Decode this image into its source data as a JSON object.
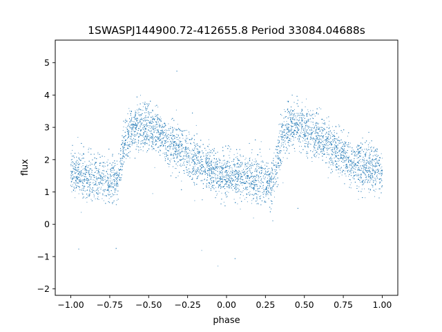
{
  "chart_data": {
    "type": "scatter",
    "title": "1SWASPJ144900.72-412655.8 Period 33084.04688s",
    "xlabel": "phase",
    "ylabel": "flux",
    "xlim": [
      -1.1,
      1.1
    ],
    "ylim": [
      -2.2,
      5.7
    ],
    "xticks": [
      -1.0,
      -0.75,
      -0.5,
      -0.25,
      0.0,
      0.25,
      0.5,
      0.75,
      1.0
    ],
    "xtick_labels": [
      "−1.00",
      "−0.75",
      "−0.50",
      "−0.25",
      "0.00",
      "0.25",
      "0.50",
      "0.75",
      "1.00"
    ],
    "yticks": [
      -2,
      -1,
      0,
      1,
      2,
      3,
      4,
      5
    ],
    "ytick_labels": [
      "−2",
      "−1",
      "0",
      "1",
      "2",
      "3",
      "4",
      "5"
    ],
    "grid": false,
    "legend": "none",
    "marker_color": "#1f77b4",
    "series": [
      {
        "phase_range": [
          -1.0,
          1.0
        ],
        "approx_point_count": 9000,
        "trend": {
          "x": [
            -1.0,
            -0.85,
            -0.75,
            -0.7,
            -0.65,
            -0.58,
            -0.5,
            -0.4,
            -0.3,
            -0.2,
            -0.1,
            0.0,
            0.1,
            0.15,
            0.25,
            0.3,
            0.35,
            0.42,
            0.5,
            0.6,
            0.7,
            0.8,
            0.9,
            1.0
          ],
          "y": [
            1.6,
            1.45,
            1.3,
            1.4,
            2.6,
            3.1,
            3.0,
            2.7,
            2.3,
            1.9,
            1.7,
            1.55,
            1.45,
            1.4,
            1.3,
            1.4,
            2.6,
            3.1,
            3.0,
            2.7,
            2.3,
            1.9,
            1.7,
            1.6
          ]
        },
        "scatter_sd": 0.35
      }
    ]
  }
}
